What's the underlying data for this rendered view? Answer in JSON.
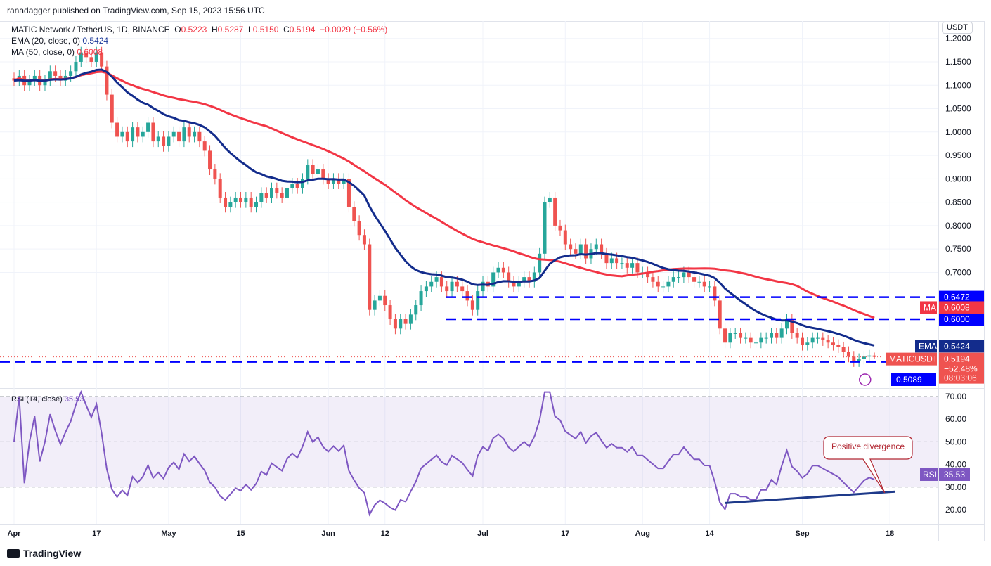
{
  "header": {
    "published": "ranadagger published on TradingView.com, Sep 15, 2023 15:56 UTC"
  },
  "legend": {
    "symbol": "MATIC Network / TetherUS, 1D, BINANCE",
    "o_label": "O",
    "o": "0.5223",
    "h_label": "H",
    "h": "0.5287",
    "l_label": "L",
    "l": "0.5150",
    "c_label": "C",
    "c": "0.5194",
    "change": "−0.0029 (−0.56%)",
    "ema_label": "EMA (20, close, 0)",
    "ema_value": "0.5424",
    "ma_label": "MA (50, close, 0)",
    "ma_value": "0.6008"
  },
  "currency_button": "USDT",
  "rsi_legend": {
    "label": "RSI (14, close)",
    "value": "35.53"
  },
  "footer": {
    "brand": "TradingView"
  },
  "colors": {
    "up": "#26a69a",
    "down": "#ef5350",
    "ema": "#132c8c",
    "ma": "#f23645",
    "levels": "#0000ff",
    "rsi": "#7e57c2",
    "callout": "#b22833"
  },
  "chart_data": {
    "type": "candlestick",
    "start_date": "2023-04-01",
    "closes": [
      1.11,
      1.12,
      1.1,
      1.11,
      1.12,
      1.1,
      1.11,
      1.13,
      1.12,
      1.11,
      1.12,
      1.13,
      1.15,
      1.17,
      1.16,
      1.15,
      1.17,
      1.14,
      1.08,
      1.02,
      0.99,
      1.0,
      0.98,
      1.01,
      0.99,
      1.0,
      1.02,
      0.98,
      0.99,
      0.97,
      0.99,
      1.0,
      0.98,
      1.01,
      0.99,
      1.0,
      0.98,
      0.96,
      0.92,
      0.9,
      0.86,
      0.84,
      0.85,
      0.86,
      0.85,
      0.86,
      0.84,
      0.85,
      0.87,
      0.86,
      0.88,
      0.87,
      0.86,
      0.88,
      0.89,
      0.88,
      0.9,
      0.93,
      0.91,
      0.92,
      0.9,
      0.89,
      0.9,
      0.89,
      0.9,
      0.84,
      0.81,
      0.78,
      0.76,
      0.62,
      0.64,
      0.65,
      0.63,
      0.6,
      0.58,
      0.6,
      0.59,
      0.61,
      0.63,
      0.66,
      0.67,
      0.68,
      0.69,
      0.67,
      0.66,
      0.68,
      0.67,
      0.66,
      0.64,
      0.62,
      0.66,
      0.68,
      0.67,
      0.7,
      0.71,
      0.7,
      0.68,
      0.67,
      0.68,
      0.69,
      0.68,
      0.7,
      0.74,
      0.85,
      0.86,
      0.8,
      0.79,
      0.76,
      0.75,
      0.74,
      0.76,
      0.73,
      0.75,
      0.76,
      0.74,
      0.72,
      0.73,
      0.72,
      0.72,
      0.71,
      0.72,
      0.7,
      0.7,
      0.69,
      0.68,
      0.67,
      0.67,
      0.68,
      0.69,
      0.69,
      0.7,
      0.69,
      0.68,
      0.68,
      0.67,
      0.67,
      0.64,
      0.58,
      0.55,
      0.57,
      0.57,
      0.56,
      0.56,
      0.55,
      0.55,
      0.56,
      0.56,
      0.57,
      0.56,
      0.58,
      0.6,
      0.57,
      0.56,
      0.545,
      0.55,
      0.56,
      0.56,
      0.555,
      0.55,
      0.545,
      0.54,
      0.53,
      0.52,
      0.51,
      0.515,
      0.52,
      0.5223,
      0.5194
    ],
    "last_open": 0.5223,
    "last_high": 0.5287,
    "last_low": 0.515,
    "price_axis": {
      "ylim": [
        0.48,
        1.22
      ],
      "ticks": [
        "1.2000",
        "1.1500",
        "1.1000",
        "1.0500",
        "1.0000",
        "0.9500",
        "0.9000",
        "0.8500",
        "0.8000",
        "0.7500",
        "0.7000"
      ]
    },
    "time_axis": {
      "ticks": [
        {
          "label": "Apr",
          "date": "2023-04-01"
        },
        {
          "label": "17",
          "date": "2023-04-17"
        },
        {
          "label": "May",
          "date": "2023-05-01"
        },
        {
          "label": "15",
          "date": "2023-05-15"
        },
        {
          "label": "Jun",
          "date": "2023-06-01"
        },
        {
          "label": "12",
          "date": "2023-06-12"
        },
        {
          "label": "Jul",
          "date": "2023-07-01"
        },
        {
          "label": "17",
          "date": "2023-07-17"
        },
        {
          "label": "Aug",
          "date": "2023-08-01"
        },
        {
          "label": "14",
          "date": "2023-08-14"
        },
        {
          "label": "Sep",
          "date": "2023-09-01"
        },
        {
          "label": "18",
          "date": "2023-09-18"
        }
      ]
    },
    "indicators": {
      "ema_period": 20,
      "ma_period": 50,
      "rsi_period": 14
    },
    "horizontal_levels": [
      {
        "value": 0.6472,
        "label": "0.6472"
      },
      {
        "value": 0.6,
        "label": "0.6000"
      },
      {
        "value": 0.5089,
        "label": "0.5089"
      }
    ],
    "price_tags": [
      {
        "name": "MA",
        "value": "0.6008"
      },
      {
        "name": "EMA",
        "value": "0.5424"
      },
      {
        "name": "MATICUSDT",
        "value": "0.5194",
        "change": "−52.48%",
        "countdown": "08:03:06"
      }
    ],
    "rsi_axis": {
      "ylim": [
        15,
        72
      ],
      "ticks": [
        "70.00",
        "60.00",
        "50.00",
        "40.00",
        "30.00",
        "20.00"
      ],
      "band": [
        30,
        70
      ],
      "midline": 50
    },
    "rsi_tag": {
      "name": "RSI",
      "value": "35.53"
    },
    "rsi_trendline": {
      "from": {
        "date": "2023-08-17",
        "value": 23
      },
      "to": {
        "date": "2023-09-19",
        "value": 28
      }
    },
    "annotation": {
      "text": "Positive divergence",
      "target": {
        "date": "2023-09-17",
        "value": 27.5
      }
    }
  }
}
